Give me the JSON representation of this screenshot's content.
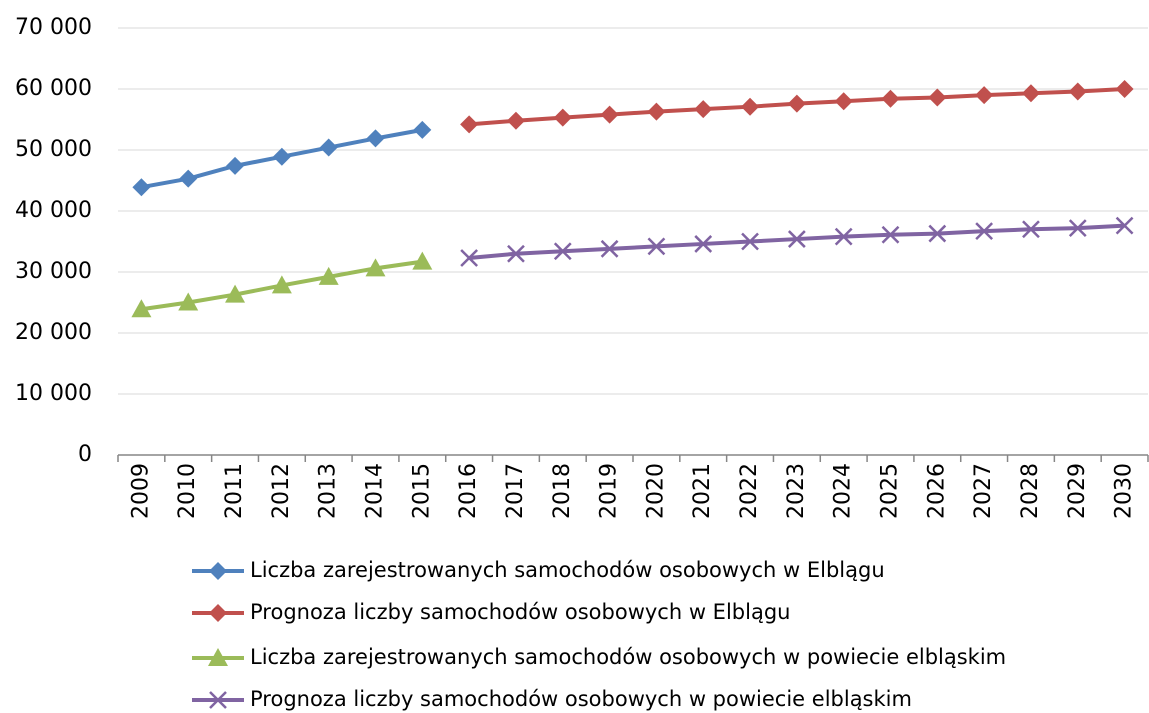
{
  "chart_data": {
    "type": "line",
    "categories": [
      "2009",
      "2010",
      "2011",
      "2012",
      "2013",
      "2014",
      "2015",
      "2016",
      "2017",
      "2018",
      "2019",
      "2020",
      "2021",
      "2022",
      "2023",
      "2024",
      "2025",
      "2026",
      "2027",
      "2028",
      "2029",
      "2030"
    ],
    "series": [
      {
        "name": "Liczba zarejestrowanych samochodów osobowych w Elblągu",
        "color": "#4f81bd",
        "marker": "diamond",
        "values": [
          43900,
          45300,
          47400,
          48900,
          50400,
          51900,
          53300,
          null,
          null,
          null,
          null,
          null,
          null,
          null,
          null,
          null,
          null,
          null,
          null,
          null,
          null,
          null
        ]
      },
      {
        "name": "Prognoza liczby samochodów osobowych w Elblągu",
        "color": "#c0504d",
        "marker": "diamond",
        "values": [
          null,
          null,
          null,
          null,
          null,
          null,
          null,
          54200,
          54800,
          55300,
          55800,
          56300,
          56700,
          57100,
          57600,
          58000,
          58400,
          58600,
          59000,
          59300,
          59600,
          60000
        ]
      },
      {
        "name": "Liczba zarejestrowanych samochodów osobowych w powiecie elbląskim",
        "color": "#9bbb59",
        "marker": "triangle",
        "values": [
          23900,
          25000,
          26300,
          27800,
          29200,
          30600,
          31700,
          null,
          null,
          null,
          null,
          null,
          null,
          null,
          null,
          null,
          null,
          null,
          null,
          null,
          null,
          null
        ]
      },
      {
        "name": "Prognoza liczby samochodów osobowych w powiecie elbląskim",
        "color": "#8064a2",
        "marker": "x",
        "values": [
          null,
          null,
          null,
          null,
          null,
          null,
          null,
          32300,
          33000,
          33400,
          33800,
          34200,
          34600,
          35000,
          35400,
          35800,
          36100,
          36300,
          36700,
          37000,
          37200,
          37600
        ]
      }
    ],
    "ylim": [
      0,
      70000
    ],
    "yticks": [
      0,
      {
        "value": 10000,
        "label": "10 000"
      },
      {
        "value": 20000,
        "label": "20 000"
      },
      {
        "value": 30000,
        "label": "30 000"
      },
      {
        "value": 40000,
        "label": "40 000"
      },
      {
        "value": 50000,
        "label": "50 000"
      },
      {
        "value": 60000,
        "label": "60 000"
      },
      {
        "value": 70000,
        "label": "70 000"
      }
    ],
    "grid": true,
    "legend": "bottom"
  }
}
